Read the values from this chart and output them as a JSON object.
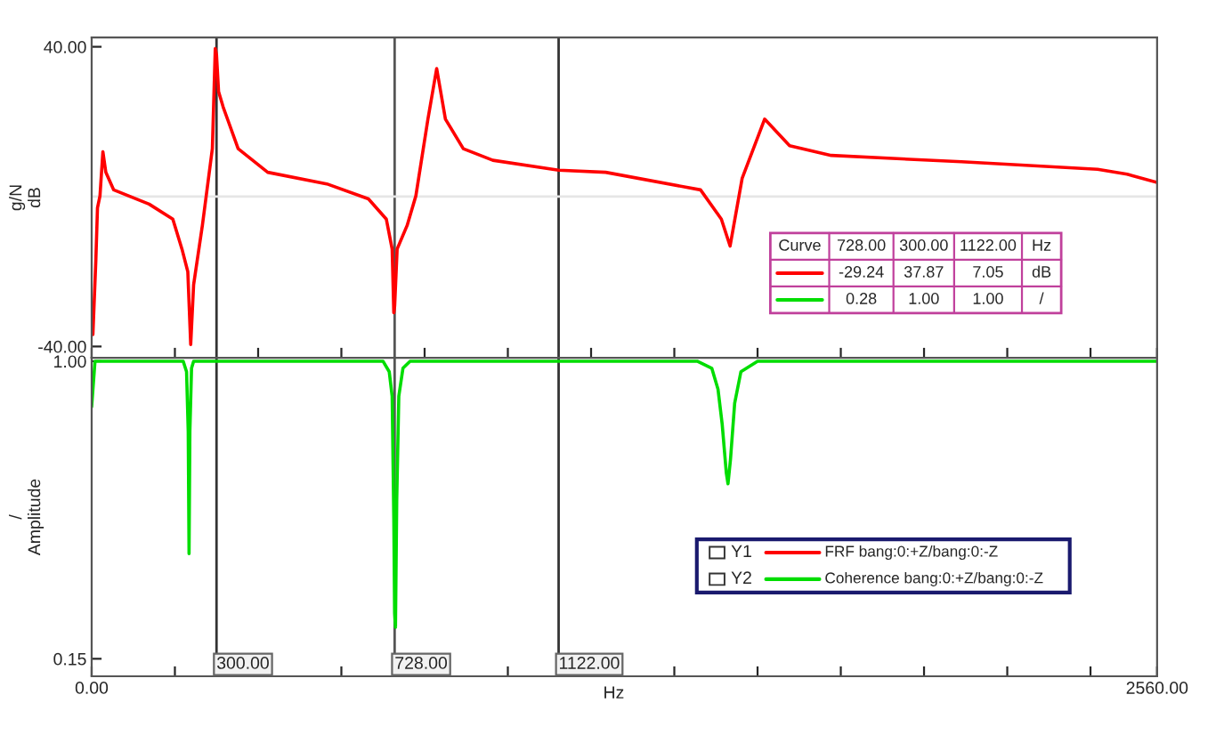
{
  "chart_data": [
    {
      "type": "line",
      "ylabel": "g/N\ndB",
      "tick_labels": "y",
      "series": [
        {
          "name": "FRF bang:0:+Z/bang:0:-Z",
          "color": "#ff0000",
          "x": [
            3,
            10,
            14,
            20,
            27,
            34,
            53,
            138,
            195,
            217,
            231,
            238,
            245,
            266,
            290,
            297,
            300,
            305,
            316,
            352,
            423,
            565,
            665,
            708,
            722,
            726,
            728,
            734,
            758,
            779,
            808,
            829,
            850,
            893,
            964,
            1122,
            1235,
            1463,
            1513,
            1534,
            1563,
            1617,
            1677,
            1777,
            2090,
            2417,
            2488,
            2560
          ],
          "values": [
            -36.8,
            -17.2,
            -3,
            0.2,
            12,
            6.5,
            1.8,
            -2,
            -6,
            -14,
            -20,
            -39.5,
            -23.5,
            -7.7,
            12.8,
            39.5,
            37.87,
            28,
            23.9,
            12.8,
            6.5,
            3.4,
            -0.6,
            -6,
            -14,
            -31,
            -29.24,
            -14,
            -7.7,
            0.2,
            20.7,
            34.2,
            20.7,
            12.8,
            9.7,
            7.05,
            6.5,
            1.8,
            -6,
            -13.2,
            4.9,
            20.7,
            13.6,
            11,
            9.3,
            7.3,
            6,
            3.8
          ]
        }
      ],
      "xlim": [
        0,
        2560
      ],
      "xticks": [
        {
          "value": 0,
          "label": null
        },
        {
          "value": 200,
          "label": null
        },
        {
          "value": 400,
          "label": null
        },
        {
          "value": 600,
          "label": null
        },
        {
          "value": 800,
          "label": null
        },
        {
          "value": 1000,
          "label": null
        },
        {
          "value": 1200,
          "label": null
        },
        {
          "value": 1400,
          "label": null
        },
        {
          "value": 1600,
          "label": null
        },
        {
          "value": 1800,
          "label": null
        },
        {
          "value": 2000,
          "label": null
        },
        {
          "value": 2200,
          "label": null
        },
        {
          "value": 2400,
          "label": null
        },
        {
          "value": 2560,
          "label": null
        }
      ],
      "ylim": [
        -43,
        42.5
      ],
      "yticks": [
        {
          "value": -40,
          "label": "-40.00"
        },
        {
          "value": 40,
          "label": "40.00"
        }
      ],
      "ref_lines": [
        {
          "axis": "x",
          "value": 300,
          "color": "#333333"
        },
        {
          "axis": "x",
          "value": 728,
          "color": "#555555"
        },
        {
          "axis": "x",
          "value": 1122,
          "color": "#333333"
        },
        {
          "axis": "y",
          "value": 0,
          "color": "#e6e6e6"
        }
      ],
      "annotations": [
        "Curve",
        "728.00",
        "300.00",
        "1122.00",
        "Hz",
        "-29.24",
        "37.87",
        "7.05",
        "dB",
        "0.28",
        "1.00",
        "1.00",
        "/"
      ]
    },
    {
      "type": "line",
      "xlabel": "Hz",
      "ylabel": "/\nAmplitude",
      "legend": "bottom right",
      "series": [
        {
          "name": "Coherence bang:0:+Z/bang:0:-Z",
          "color": "#00dd00",
          "x": [
            0,
            8,
            220,
            228,
            232,
            234,
            236,
            240,
            245,
            700,
            715,
            722,
            726,
            728,
            730,
            733,
            738,
            748,
            765,
            1455,
            1490,
            1505,
            1515,
            1525,
            1529,
            1535,
            1545,
            1560,
            1600,
            2560
          ],
          "values": [
            0.87,
            1.0,
            1.0,
            0.97,
            0.8,
            0.45,
            0.8,
            0.98,
            1.0,
            1.0,
            0.97,
            0.9,
            0.55,
            0.28,
            0.24,
            0.6,
            0.9,
            0.98,
            1.0,
            1.0,
            0.98,
            0.92,
            0.82,
            0.68,
            0.65,
            0.72,
            0.88,
            0.97,
            1.0,
            1.0
          ]
        }
      ],
      "xlim": [
        0,
        2560
      ],
      "xticks": [
        {
          "value": 0,
          "label": "0.00"
        },
        {
          "value": 200,
          "label": null
        },
        {
          "value": 400,
          "label": null
        },
        {
          "value": 600,
          "label": null
        },
        {
          "value": 800,
          "label": null
        },
        {
          "value": 1000,
          "label": null
        },
        {
          "value": 1200,
          "label": null
        },
        {
          "value": 1400,
          "label": null
        },
        {
          "value": 1600,
          "label": null
        },
        {
          "value": 1800,
          "label": null
        },
        {
          "value": 2000,
          "label": null
        },
        {
          "value": 2200,
          "label": null
        },
        {
          "value": 2400,
          "label": null
        },
        {
          "value": 2560,
          "label": "2560.00"
        }
      ],
      "ylim": [
        0.1,
        1.01
      ],
      "yticks": [
        {
          "value": 0.15,
          "label": "0.15"
        },
        {
          "value": 1.0,
          "label": "1.00"
        }
      ],
      "ref_lines": [
        {
          "axis": "x",
          "value": 300,
          "label": "300.00",
          "color": "#333333"
        },
        {
          "axis": "x",
          "value": 728,
          "label": "728.00",
          "color": "#555555"
        },
        {
          "axis": "x",
          "value": 1122,
          "label": "1122.00",
          "color": "#333333"
        }
      ],
      "annotations": [
        "Y1",
        "Y2"
      ]
    }
  ]
}
